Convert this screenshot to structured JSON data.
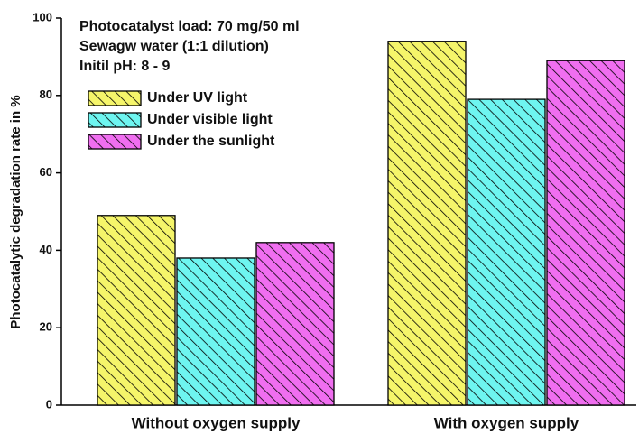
{
  "chart_data": {
    "type": "bar",
    "annotations": [
      "Photocatalyst load: 70 mg/50 ml",
      "Sewagw water (1:1 dilution)",
      "Initil pH: 8 - 9"
    ],
    "y_label": "Photocatalytic degradation rate in %",
    "categories": [
      "Without oxygen supply",
      "With oxygen supply"
    ],
    "series": [
      {
        "name": "Under UV light",
        "color": "#f5f56a",
        "values": [
          49,
          94
        ]
      },
      {
        "name": "Under visible light",
        "color": "#6ef5f0",
        "values": [
          38,
          79
        ]
      },
      {
        "name": "Under the sunlight",
        "color": "#f06ef0",
        "values": [
          42,
          89
        ]
      }
    ],
    "ylim": [
      0,
      100
    ],
    "yticks": [
      0,
      20,
      40,
      60,
      80,
      100
    ],
    "legend": "upper left",
    "hatch": true
  }
}
